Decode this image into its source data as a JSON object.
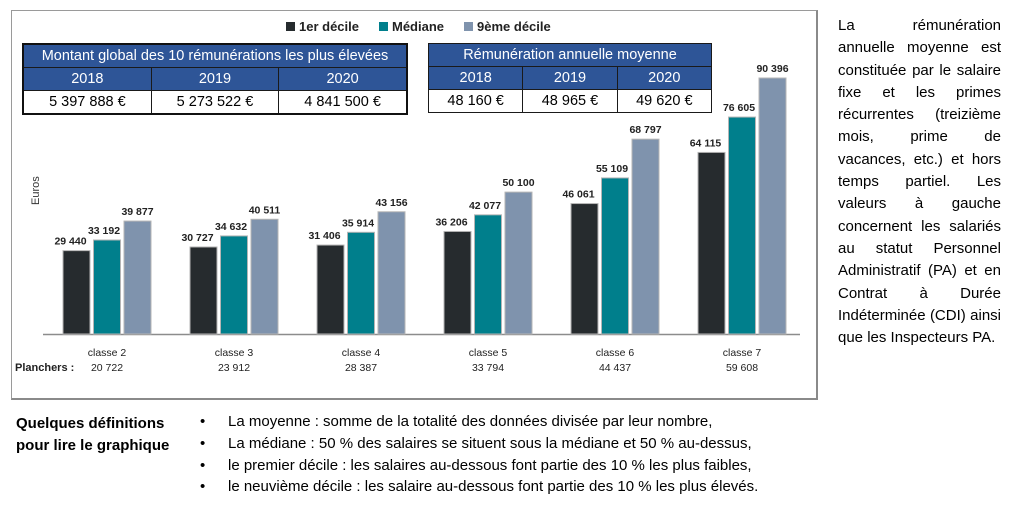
{
  "chart_data": {
    "type": "bar",
    "title": "",
    "ylabel": "Euros",
    "xlabel": "",
    "ylim": [
      0,
      90396
    ],
    "grid": false,
    "legend_position": "top",
    "categories": [
      "classe 2",
      "classe 3",
      "classe 4",
      "classe 5",
      "classe 6",
      "classe 7"
    ],
    "series": [
      {
        "name": "1er décile",
        "color": "#262b2e",
        "values": [
          29440,
          30727,
          31406,
          36206,
          46061,
          64115
        ],
        "labels": [
          "29 440",
          "30 727",
          "31 406",
          "36 206",
          "46 061",
          "64 115"
        ]
      },
      {
        "name": "Médiane",
        "color": "#007f8c",
        "values": [
          33192,
          34632,
          35914,
          42077,
          55109,
          76605
        ],
        "labels": [
          "33 192",
          "34 632",
          "35 914",
          "42 077",
          "55 109",
          "76 605"
        ]
      },
      {
        "name": "9ème décile",
        "color": "#7f93ad",
        "values": [
          39877,
          40511,
          43156,
          50100,
          68797,
          90396
        ],
        "labels": [
          "39 877",
          "40 511",
          "43 156",
          "50 100",
          "68 797",
          "90 396"
        ]
      }
    ],
    "planchers_label": "Planchers :",
    "planchers": [
      "20 722",
      "23 912",
      "28 387",
      "33 794",
      "44 437",
      "59 608"
    ]
  },
  "table_top10": {
    "title": "Montant global des 10 rémunérations les plus élevées",
    "years": [
      "2018",
      "2019",
      "2020"
    ],
    "values": [
      "5 397 888 €",
      "5 273 522 €",
      "4 841 500 €"
    ]
  },
  "table_average": {
    "title": "Rémunération annuelle moyenne",
    "years": [
      "2018",
      "2019",
      "2020"
    ],
    "values": [
      "48 160 €",
      "48 965 €",
      "49 620 €"
    ]
  },
  "side_note": "La rémunération annuelle moyenne est constituée par le salaire fixe et les primes récurrentes (treizième mois, prime de vacances, etc.) et hors temps partiel. Les valeurs à gauche concernent les salariés au statut Personnel Administratif (PA) et en Contrat à Durée Indéterminée (CDI) ainsi que les Inspecteurs PA.",
  "definitions": {
    "title_line1": "Quelques définitions",
    "title_line2": "pour lire le graphique",
    "bullet": "•",
    "items": [
      "La moyenne : somme de la totalité des données divisée par leur nombre,",
      "La médiane :  50 % des salaires se situent sous la médiane et 50 % au-dessus,",
      "le premier décile :  les salaires au-dessous font partie des 10 % les plus faibles,",
      "le neuvième décile : les salaire au-dessous font partie des 10 % les plus élevés."
    ]
  }
}
